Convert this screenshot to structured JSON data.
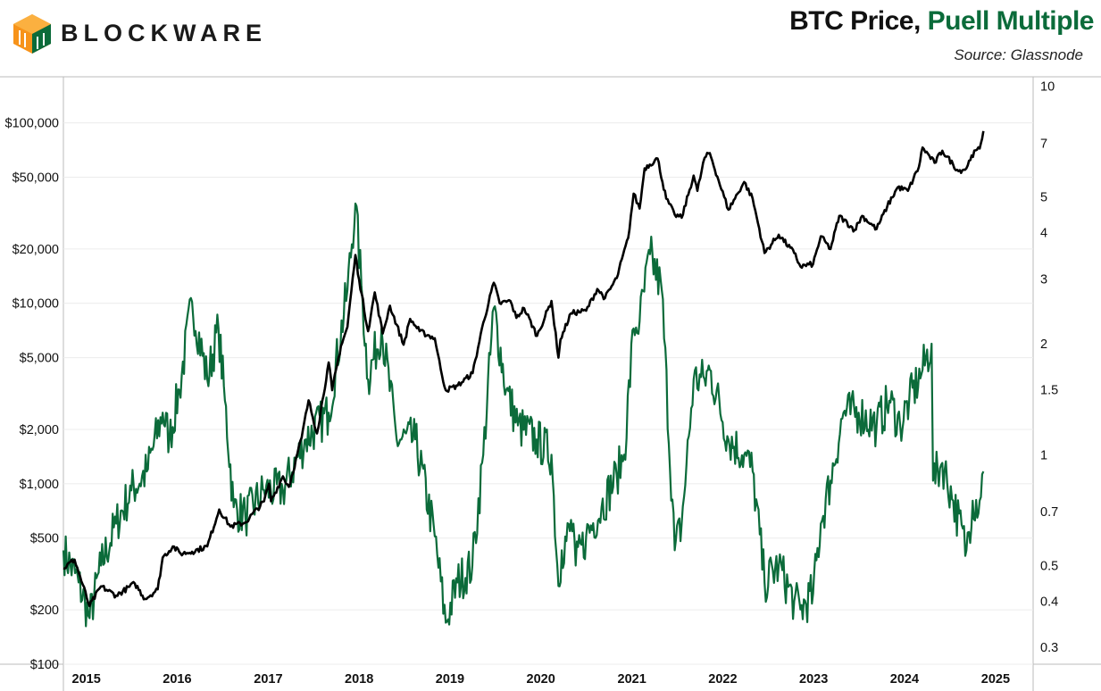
{
  "header": {
    "brand": "BLOCKWARE",
    "title_part1": "BTC Price",
    "title_sep": ", ",
    "title_part2": "Puell Multiple",
    "source": "Source: Glassnode"
  },
  "colors": {
    "price_line": "#000000",
    "puell_line": "#0b6b3a",
    "logo_orange": "#f7931a",
    "logo_green": "#0b6b3a"
  },
  "icons": {
    "logo": "blockware-cube-logo"
  },
  "chart_data": {
    "type": "line",
    "title": "BTC Price, Puell Multiple",
    "x_axis": {
      "tick_labels": [
        "2015",
        "2016",
        "2017",
        "2018",
        "2019",
        "2020",
        "2021",
        "2022",
        "2023",
        "2024",
        "2025"
      ],
      "range": [
        "2014-10-01",
        "2025-06-01"
      ]
    },
    "y_left": {
      "scale": "log",
      "range": [
        100,
        180000
      ],
      "ticks": [
        100,
        200,
        500,
        1000,
        2000,
        5000,
        10000,
        20000,
        50000,
        100000
      ],
      "tick_labels": [
        "$100",
        "$200",
        "$500",
        "$1,000",
        "$2,000",
        "$5,000",
        "$10,000",
        "$20,000",
        "$50,000",
        "$100,000"
      ]
    },
    "y_right": {
      "scale": "log",
      "range": [
        0.27,
        10.6
      ],
      "ticks": [
        0.3,
        0.4,
        0.5,
        0.7,
        1,
        1.5,
        2,
        3,
        4,
        5,
        7,
        10
      ],
      "tick_labels": [
        "0.3",
        "0.4",
        "0.5",
        "0.7",
        "1",
        "1.5",
        "2",
        "3",
        "4",
        "5",
        "7",
        "10"
      ]
    },
    "grid": true,
    "series": [
      {
        "name": "BTC Price",
        "axis": "left",
        "x": [
          "2014-10-01",
          "2014-11-15",
          "2015-01-14",
          "2015-03-01",
          "2015-05-01",
          "2015-07-15",
          "2015-08-25",
          "2015-10-15",
          "2015-11-04",
          "2015-12-15",
          "2016-01-15",
          "2016-03-01",
          "2016-05-01",
          "2016-06-18",
          "2016-08-02",
          "2016-10-01",
          "2016-12-15",
          "2017-01-04",
          "2017-01-12",
          "2017-03-01",
          "2017-03-25",
          "2017-05-15",
          "2017-06-12",
          "2017-07-16",
          "2017-09-01",
          "2017-09-15",
          "2017-10-20",
          "2017-11-15",
          "2017-12-17",
          "2018-01-01",
          "2018-02-06",
          "2018-03-05",
          "2018-04-06",
          "2018-05-05",
          "2018-06-29",
          "2018-07-25",
          "2018-09-01",
          "2018-11-01",
          "2018-11-25",
          "2018-12-15",
          "2019-02-01",
          "2019-04-02",
          "2019-05-15",
          "2019-06-26",
          "2019-07-20",
          "2019-09-01",
          "2019-09-25",
          "2019-10-26",
          "2019-12-17",
          "2020-02-13",
          "2020-03-12",
          "2020-03-20",
          "2020-05-01",
          "2020-07-01",
          "2020-08-15",
          "2020-09-15",
          "2020-11-01",
          "2020-12-17",
          "2021-01-08",
          "2021-02-01",
          "2021-02-21",
          "2021-04-14",
          "2021-05-19",
          "2021-06-22",
          "2021-07-20",
          "2021-09-06",
          "2021-09-21",
          "2021-10-20",
          "2021-11-10",
          "2021-12-15",
          "2022-01-24",
          "2022-03-28",
          "2022-05-01",
          "2022-06-18",
          "2022-08-14",
          "2022-10-15",
          "2022-11-09",
          "2022-12-30",
          "2023-01-30",
          "2023-03-10",
          "2023-04-14",
          "2023-06-15",
          "2023-07-15",
          "2023-09-11",
          "2023-10-24",
          "2023-12-05",
          "2024-01-15",
          "2024-02-28",
          "2024-03-14",
          "2024-05-01",
          "2024-06-01",
          "2024-08-05",
          "2024-09-06",
          "2024-09-27",
          "2024-10-29",
          "2024-11-13"
        ],
        "y": [
          340,
          380,
          210,
          270,
          240,
          280,
          230,
          260,
          390,
          450,
          410,
          420,
          450,
          720,
          580,
          610,
          800,
          1000,
          800,
          1100,
          960,
          1800,
          2900,
          1900,
          4700,
          3300,
          5800,
          7400,
          18500,
          13500,
          7000,
          11500,
          6800,
          9700,
          5900,
          8200,
          7000,
          6400,
          4300,
          3300,
          3500,
          4100,
          7800,
          13000,
          10000,
          10300,
          8300,
          9400,
          6600,
          10300,
          5000,
          6300,
          8800,
          9100,
          12000,
          10700,
          13800,
          23000,
          40500,
          33500,
          56000,
          63500,
          38000,
          31000,
          29800,
          51000,
          42000,
          64000,
          68000,
          48000,
          33000,
          47000,
          38000,
          19000,
          24000,
          19000,
          16000,
          16500,
          23500,
          20000,
          30500,
          25500,
          30500,
          25800,
          34500,
          44000,
          42000,
          57000,
          73000,
          60000,
          70000,
          54000,
          56000,
          66000,
          72000,
          90000
        ]
      },
      {
        "name": "Puell Multiple",
        "axis": "right",
        "x": [
          "2014-10-01",
          "2014-12-01",
          "2015-01-14",
          "2015-03-01",
          "2015-05-01",
          "2015-07-01",
          "2015-09-01",
          "2015-11-04",
          "2015-12-01",
          "2016-01-10",
          "2016-03-01",
          "2016-05-01",
          "2016-06-15",
          "2016-07-11",
          "2016-08-15",
          "2016-10-01",
          "2016-12-15",
          "2017-03-01",
          "2017-06-01",
          "2017-09-01",
          "2017-11-15",
          "2017-12-17",
          "2018-01-15",
          "2018-02-06",
          "2018-04-01",
          "2018-06-01",
          "2018-08-15",
          "2018-11-01",
          "2018-12-15",
          "2019-01-31",
          "2019-04-01",
          "2019-05-15",
          "2019-06-26",
          "2019-08-15",
          "2019-10-01",
          "2019-12-15",
          "2020-02-13",
          "2020-03-12",
          "2020-03-25",
          "2020-05-11",
          "2020-05-20",
          "2020-07-01",
          "2020-09-01",
          "2020-11-01",
          "2020-12-01",
          "2021-01-08",
          "2021-02-01",
          "2021-03-15",
          "2021-05-01",
          "2021-06-22",
          "2021-07-20",
          "2021-09-06",
          "2021-10-20",
          "2021-11-10",
          "2022-01-24",
          "2022-03-28",
          "2022-05-01",
          "2022-06-18",
          "2022-08-14",
          "2022-10-15",
          "2022-11-09",
          "2022-12-30",
          "2023-01-30",
          "2023-03-10",
          "2023-05-01",
          "2023-07-01",
          "2023-09-11",
          "2023-11-01",
          "2023-12-15",
          "2024-01-20",
          "2024-03-14",
          "2024-04-19",
          "2024-04-25",
          "2024-06-01",
          "2024-07-15",
          "2024-09-06",
          "2024-10-01",
          "2024-10-29",
          "2024-11-13"
        ],
        "y": [
          0.55,
          0.45,
          0.36,
          0.5,
          0.65,
          0.8,
          0.9,
          1.3,
          1.1,
          1.5,
          2.6,
          1.6,
          2.2,
          1.4,
          0.72,
          0.68,
          0.8,
          0.8,
          1.1,
          1.3,
          2.8,
          4.8,
          2.6,
          1.6,
          2.2,
          1.1,
          1.1,
          0.6,
          0.35,
          0.45,
          0.5,
          1.0,
          2.5,
          1.5,
          1.2,
          1.1,
          1.0,
          0.44,
          0.55,
          0.65,
          0.5,
          0.6,
          0.72,
          0.88,
          1.0,
          2.2,
          2.3,
          3.5,
          2.8,
          0.55,
          0.65,
          1.6,
          1.6,
          1.7,
          1.1,
          1.0,
          0.9,
          0.45,
          0.5,
          0.4,
          0.38,
          0.42,
          0.65,
          0.85,
          1.3,
          1.3,
          1.2,
          1.4,
          1.2,
          1.4,
          1.7,
          2.0,
          0.85,
          0.95,
          0.75,
          0.55,
          0.75,
          0.75,
          0.9
        ]
      }
    ]
  }
}
